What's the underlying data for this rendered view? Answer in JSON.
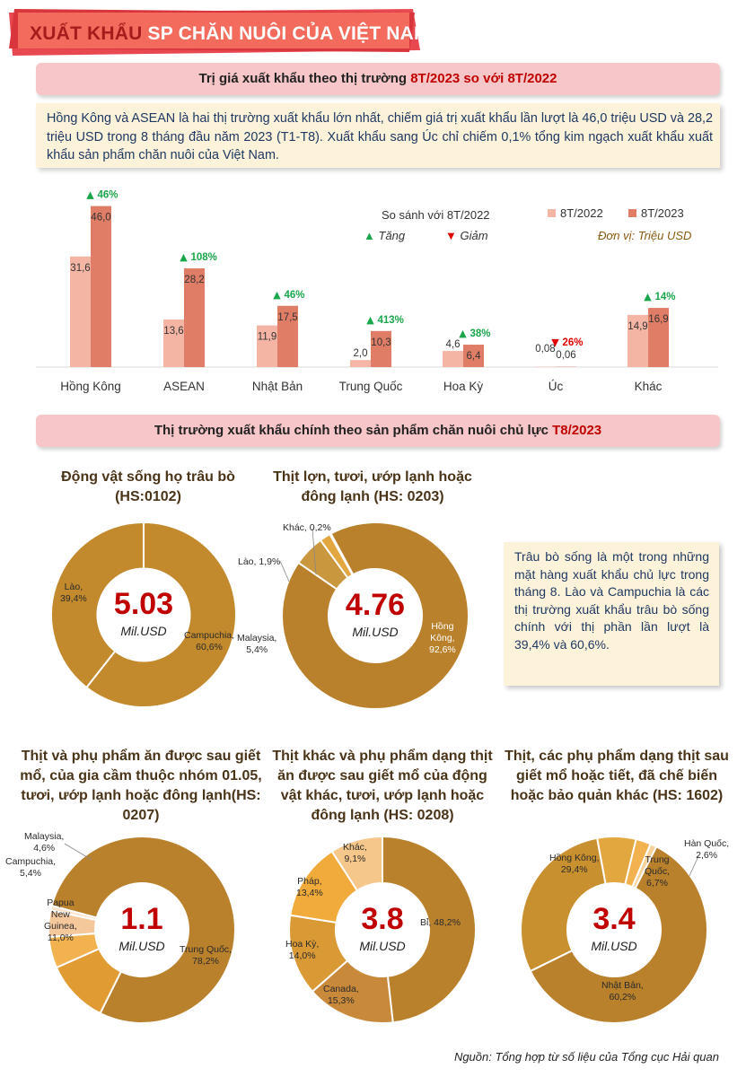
{
  "header": {
    "title_part1": "XUẤT KHẨU",
    "title_part2": " SP CHĂN NUÔI CỦA VIỆT NAM"
  },
  "section1": {
    "title_part1": "Trị giá xuất khẩu theo thị trường ",
    "title_part2": "8T/2023 so với 8T/2022"
  },
  "info1": "Hồng Kông và ASEAN là hai thị trường xuất khẩu lớn nhất, chiếm giá trị xuất khẩu lần lượt là 46,0 triệu USD và 28,2 triệu USD trong 8 tháng đầu năm 2023 (T1-T8). Xuất khẩu sang Úc chỉ chiếm 0,1% tổng kim ngạch xuất khẩu xuất khẩu sản phẩm chăn nuôi của Việt Nam.",
  "legend": {
    "compare": "So sánh với 8T/2022",
    "up": "Tăng",
    "down": "Giảm",
    "s2022": "8T/2022",
    "s2023": "8T/2023",
    "unit": "Đơn vị: Triệu USD"
  },
  "section2": {
    "title_part1": "Thị trường xuất khẩu chính theo sản phẩm chăn nuôi chủ lực ",
    "title_part2": "T8/2023"
  },
  "info2": "Trâu bò sống là một trong những mặt hàng xuất khẩu chủ lực trong tháng 8. Lào và Campuchia là các thị trường xuất khẩu trâu bò sống chính với thị phần lần lượt là 39,4% và 60,6%.",
  "source": "Nguồn: Tổng hợp từ số liệu của Tổng cục Hải quan",
  "colors": {
    "bar2022": "#f4b5a4",
    "bar2023": "#e07d66",
    "up": "#1aa64b",
    "down": "#e00000",
    "donut_main": "#c28a2c",
    "accent": "#c00000"
  },
  "chart_data": [
    {
      "type": "bar",
      "categories": [
        "Hồng Kông",
        "ASEAN",
        "Nhật Bản",
        "Trung Quốc",
        "Hoa Kỳ",
        "Úc",
        "Khác"
      ],
      "series": [
        {
          "name": "8T/2022",
          "values": [
            31.6,
            13.6,
            11.9,
            2.0,
            4.6,
            0.08,
            14.9
          ],
          "labels": [
            "31,6",
            "13,6",
            "11,9",
            "2,0",
            "4,6",
            "0,08",
            "14,9"
          ]
        },
        {
          "name": "8T/2023",
          "values": [
            46.0,
            28.2,
            17.5,
            10.3,
            6.4,
            0.06,
            16.9
          ],
          "labels": [
            "46,0",
            "28,2",
            "17,5",
            "10,3",
            "6,4",
            "0,06",
            "16,9"
          ]
        }
      ],
      "changes": [
        {
          "dir": "up",
          "text": "46%"
        },
        {
          "dir": "up",
          "text": "108%"
        },
        {
          "dir": "up",
          "text": "46%"
        },
        {
          "dir": "up",
          "text": "413%"
        },
        {
          "dir": "up",
          "text": "38%"
        },
        {
          "dir": "down",
          "text": "26%"
        },
        {
          "dir": "up",
          "text": "14%"
        }
      ],
      "ylim": [
        0,
        46
      ]
    },
    {
      "type": "pie",
      "title": "Động vật sống họ trâu bò (HS:0102)",
      "center_value": "5.03",
      "center_unit": "Mil.USD",
      "slices": [
        {
          "name": "Campuchia",
          "value": 60.6,
          "label": "60,6%",
          "color": "#c28a2c"
        },
        {
          "name": "Lào",
          "value": 39.4,
          "label": "39,4%",
          "color": "#c28a2c"
        }
      ]
    },
    {
      "type": "pie",
      "title": "Thịt lợn, tươi, ướp lạnh hoặc đông lạnh (HS: 0203)",
      "center_value": "4.76",
      "center_unit": "Mil.USD",
      "slices": [
        {
          "name": "Hồng Kông",
          "value": 92.6,
          "label": "92,6%",
          "color": "#b9812c"
        },
        {
          "name": "Malaysia",
          "value": 5.4,
          "label": "5,4%",
          "color": "#c8973e"
        },
        {
          "name": "Lào",
          "value": 1.9,
          "label": "1,9%",
          "color": "#e3a73f"
        },
        {
          "name": "Khác",
          "value": 0.2,
          "label": "0,2%",
          "color": "#f2c78a"
        }
      ]
    },
    {
      "type": "pie",
      "title": "Thịt và phụ phẩm ăn được sau giết mổ, của gia cầm thuộc nhóm 01.05, tươi, ướp lạnh hoặc đông lạnh(HS: 0207)",
      "center_value": "1.1",
      "center_unit": "Mil.USD",
      "slices": [
        {
          "name": "Trung Quốc",
          "value": 78.2,
          "label": "78,2%",
          "color": "#b9812c"
        },
        {
          "name": "Papua New Guinea",
          "value": 11.0,
          "label": "11,0%",
          "color": "#e09b33"
        },
        {
          "name": "Campuchia",
          "value": 5.4,
          "label": "5,4%",
          "color": "#f2b24f"
        },
        {
          "name": "Malaysia",
          "value": 4.6,
          "label": "4,6%",
          "color": "#f5c89b"
        },
        {
          "name": "",
          "value": 0.8,
          "label": "",
          "color": "#fbe3cc"
        }
      ]
    },
    {
      "type": "pie",
      "title": "Thịt khác và phụ phẩm dạng thịt ăn được sau giết mổ của động vật khác, tươi, ướp lạnh hoặc đông lạnh (HS: 0208)",
      "center_value": "3.8",
      "center_unit": "Mil.USD",
      "slices": [
        {
          "name": "Bỉ",
          "value": 48.2,
          "label": "48,2%",
          "color": "#b9812c"
        },
        {
          "name": "Canada",
          "value": 15.3,
          "label": "15,3%",
          "color": "#c8893a"
        },
        {
          "name": "Hoa Kỳ",
          "value": 14.0,
          "label": "14,0%",
          "color": "#d99a35"
        },
        {
          "name": "Pháp",
          "value": 13.4,
          "label": "13,4%",
          "color": "#f0ab3a"
        },
        {
          "name": "Khác",
          "value": 9.1,
          "label": "9,1%",
          "color": "#f5c78a"
        }
      ]
    },
    {
      "type": "pie",
      "title": "Thịt, các phụ phẩm dạng thịt sau giết mổ hoặc tiết, đã chế biến hoặc bảo quản khác (HS: 1602)",
      "center_value": "3.4",
      "center_unit": "Mil.USD",
      "slices": [
        {
          "name": "Nhật Bản",
          "value": 60.2,
          "label": "60,2%",
          "color": "#b9812c"
        },
        {
          "name": "Hồng Kông",
          "value": 29.4,
          "label": "29,4%",
          "color": "#c9902f"
        },
        {
          "name": "Trung Quốc",
          "value": 6.7,
          "label": "6,7%",
          "color": "#e3a73f"
        },
        {
          "name": "Hàn Quốc",
          "value": 2.6,
          "label": "2,6%",
          "color": "#f2b24f"
        },
        {
          "name": "",
          "value": 1.1,
          "label": "",
          "color": "#f7d29a"
        }
      ]
    }
  ]
}
